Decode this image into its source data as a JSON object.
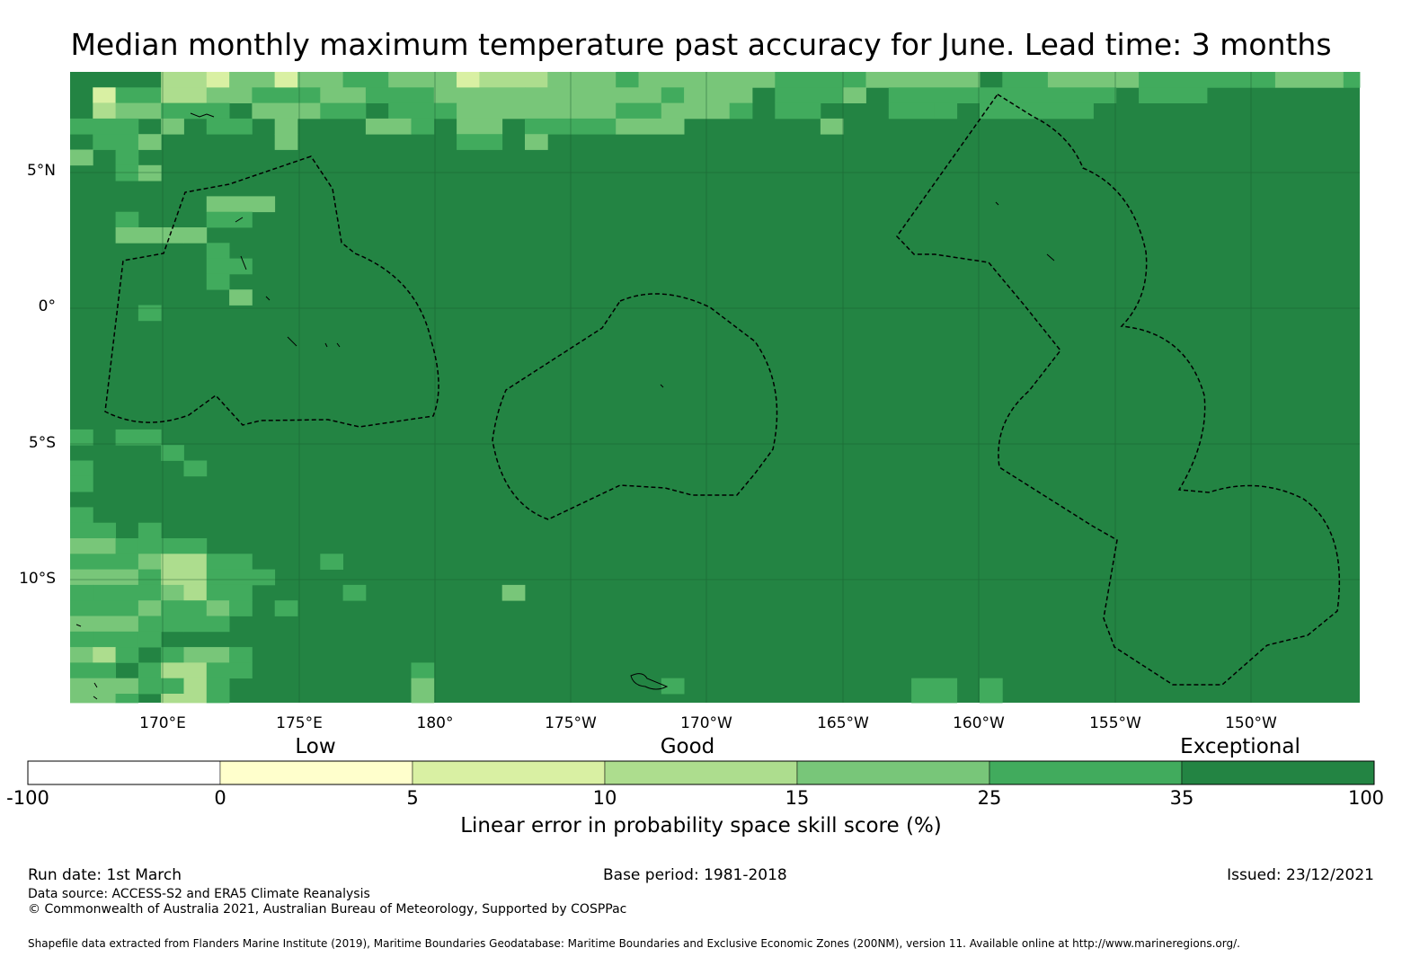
{
  "title": "Median monthly maximum temperature past accuracy for June. Lead time: 3 months",
  "map": {
    "lat_labels": [
      "5°N",
      "0°",
      "5°S",
      "10°S"
    ],
    "lon_labels": [
      "170°E",
      "175°E",
      "180°",
      "175°W",
      "170°W",
      "165°W",
      "160°W",
      "155°W",
      "150°W"
    ],
    "colors": {
      "white": "#ffffff",
      "pale_yellow": "#ffffcc",
      "yellow_green": "#d9f0a3",
      "light_green": "#addd8e",
      "mid_green": "#78c679",
      "green": "#41ab5d",
      "dark_green": "#238443"
    }
  },
  "colorbar": {
    "category_labels": [
      "Low",
      "Good",
      "Exceptional"
    ],
    "ticks": [
      "-100",
      "0",
      "5",
      "10",
      "15",
      "25",
      "35",
      "100"
    ],
    "colors": [
      "#ffffff",
      "#ffffcc",
      "#d9f0a3",
      "#addd8e",
      "#78c679",
      "#41ab5d",
      "#238443"
    ],
    "label": "Linear error in probability space skill score (%)"
  },
  "footer": {
    "run_date": "Run date: 1st March",
    "base_period": "Base period: 1981-2018",
    "issued": "Issued: 23/12/2021",
    "data_source": "Data source: ACCESS-S2 and ERA5 Climate Reanalysis",
    "copyright": "© Commonwealth of Australia 2021, Australian Bureau of Meteorology, Supported by COSPPac",
    "shapefile": "Shapefile data extracted from Flanders Marine Institute (2019), Maritime Boundaries Geodatabase: Maritime Boundaries and Exclusive Economic Zones (200NM), version 11. Available online at http://www.marineregions.org/."
  }
}
